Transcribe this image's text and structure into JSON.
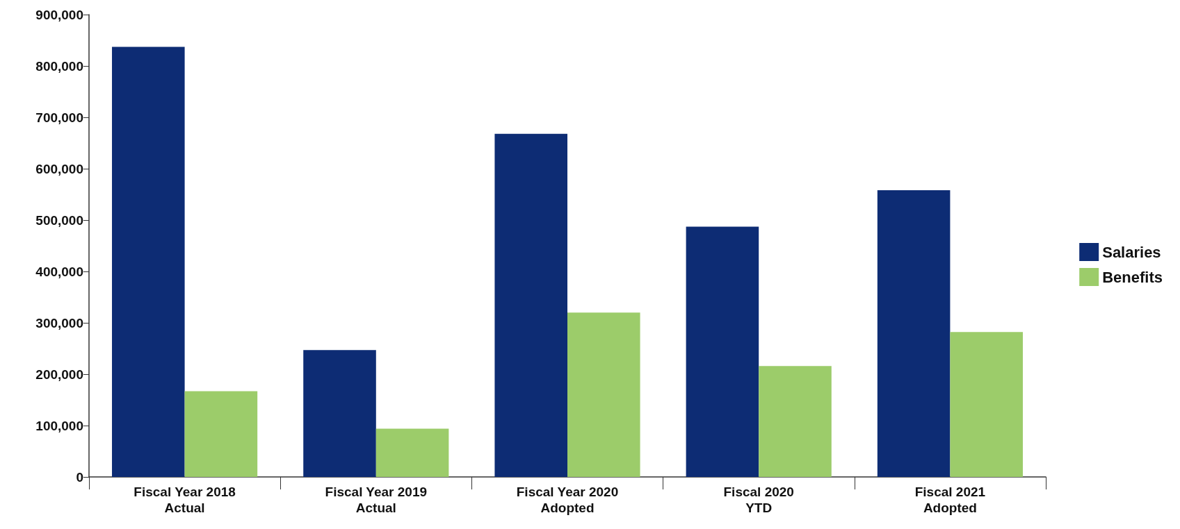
{
  "chart_data": {
    "type": "bar",
    "categories": [
      "Fiscal Year 2018\nActual",
      "Fiscal Year 2019\nActual",
      "Fiscal Year 2020\nAdopted",
      "Fiscal 2020\nYTD",
      "Fiscal 2021\nAdopted"
    ],
    "series": [
      {
        "name": "Salaries",
        "color": "#0d2c74",
        "values": [
          837000,
          247000,
          668000,
          487000,
          558000
        ]
      },
      {
        "name": "Benefits",
        "color": "#9ccc6a",
        "values": [
          167000,
          94000,
          320000,
          216000,
          282000
        ]
      }
    ],
    "ylim": [
      0,
      900000
    ],
    "yticks": [
      0,
      {
        "value": 100000,
        "label": "100,000"
      },
      {
        "value": 200000,
        "label": "200,000"
      },
      {
        "value": 300000,
        "label": "300,000"
      },
      {
        "value": 400000,
        "label": "400,000"
      },
      {
        "value": 500000,
        "label": "500,000"
      },
      {
        "value": 600000,
        "label": "600,000"
      },
      {
        "value": 700000,
        "label": "700,000"
      },
      {
        "value": 800000,
        "label": "800,000"
      },
      {
        "value": 900000,
        "label": "900,000"
      }
    ],
    "grid": false,
    "legend": "right"
  }
}
